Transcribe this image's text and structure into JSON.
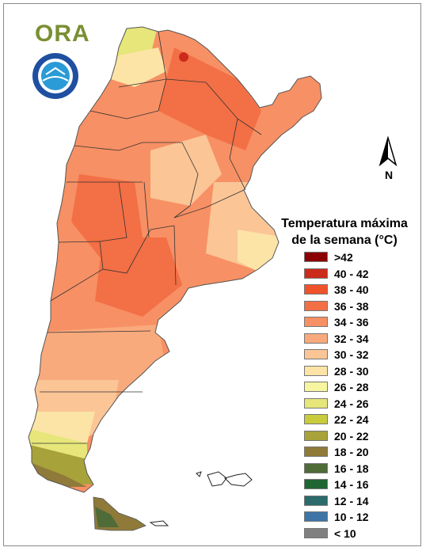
{
  "logo": {
    "text": "ORA"
  },
  "seal": {
    "name": "smn-seal-logo",
    "colors": {
      "outer": "#1f4fa0",
      "inner": "#2a9bd6"
    }
  },
  "north_arrow": {
    "label": "N"
  },
  "legend": {
    "title_line1": "Temperatura máxima",
    "title_line2": "de la semana (°C)",
    "items": [
      {
        "label": ">42",
        "color": "#8b0000"
      },
      {
        "label": "40 - 42",
        "color": "#cc2a1a"
      },
      {
        "label": "38 - 40",
        "color": "#f0522a"
      },
      {
        "label": "36 - 38",
        "color": "#f36f45"
      },
      {
        "label": "34 - 36",
        "color": "#f79064"
      },
      {
        "label": "32 - 34",
        "color": "#f9aa7d"
      },
      {
        "label": "30 - 32",
        "color": "#fbc596"
      },
      {
        "label": "28 - 30",
        "color": "#fce4a6"
      },
      {
        "label": "26 - 28",
        "color": "#f7f5a0"
      },
      {
        "label": "24 - 26",
        "color": "#e6e67a"
      },
      {
        "label": "22 - 24",
        "color": "#c8cc3c"
      },
      {
        "label": "20 - 22",
        "color": "#a8a23a"
      },
      {
        "label": "18 - 20",
        "color": "#8f7a3a"
      },
      {
        "label": "16 - 18",
        "color": "#4f6b38"
      },
      {
        "label": "14 - 16",
        "color": "#1f6633"
      },
      {
        "label": "12 - 14",
        "color": "#2c6b6b"
      },
      {
        "label": "10 - 12",
        "color": "#3f74a6"
      },
      {
        "label": "< 10",
        "color": "#808080"
      }
    ]
  }
}
